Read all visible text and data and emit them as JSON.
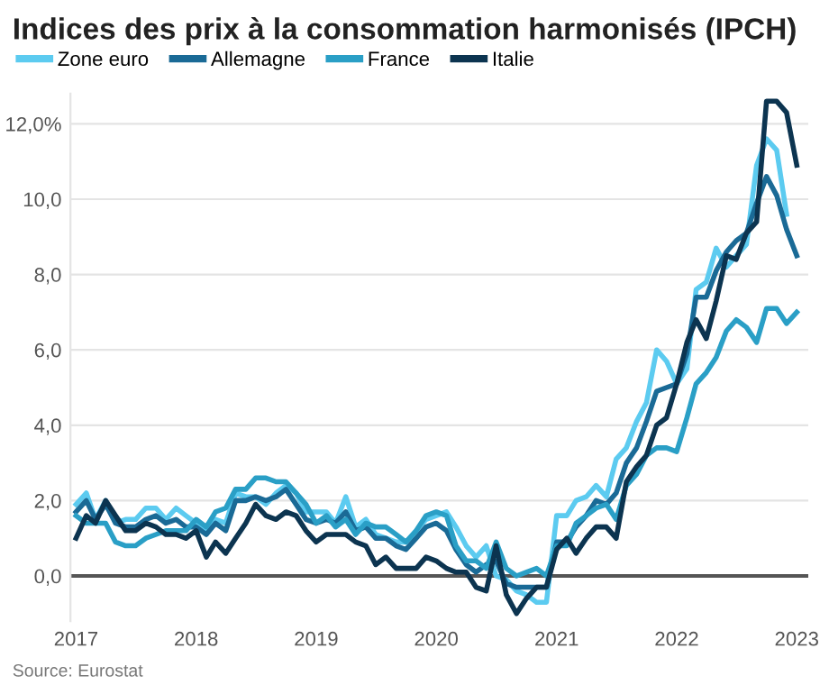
{
  "chart_data": {
    "type": "line",
    "title": "Indices des prix à la consommation harmonisés (IPCH)",
    "x": [
      "2017-01",
      "2017-02",
      "2017-03",
      "2017-04",
      "2017-05",
      "2017-06",
      "2017-07",
      "2017-08",
      "2017-09",
      "2017-10",
      "2017-11",
      "2017-12",
      "2018-01",
      "2018-02",
      "2018-03",
      "2018-04",
      "2018-05",
      "2018-06",
      "2018-07",
      "2018-08",
      "2018-09",
      "2018-10",
      "2018-11",
      "2018-12",
      "2019-01",
      "2019-02",
      "2019-03",
      "2019-04",
      "2019-05",
      "2019-06",
      "2019-07",
      "2019-08",
      "2019-09",
      "2019-10",
      "2019-11",
      "2019-12",
      "2020-01",
      "2020-02",
      "2020-03",
      "2020-04",
      "2020-05",
      "2020-06",
      "2020-07",
      "2020-08",
      "2020-09",
      "2020-10",
      "2020-11",
      "2020-12",
      "2021-01",
      "2021-02",
      "2021-03",
      "2021-04",
      "2021-05",
      "2021-06",
      "2021-07",
      "2021-08",
      "2021-09",
      "2021-10",
      "2021-11",
      "2021-12",
      "2022-01",
      "2022-02",
      "2022-03",
      "2022-04",
      "2022-05",
      "2022-06",
      "2022-07",
      "2022-08",
      "2022-09",
      "2022-10",
      "2022-11",
      "2022-12",
      "2023-01"
    ],
    "series": [
      {
        "name": "Zone euro",
        "color": "#5ccbf0",
        "values": [
          1.9,
          2.2,
          1.5,
          2.0,
          1.4,
          1.5,
          1.5,
          1.8,
          1.8,
          1.5,
          1.8,
          1.6,
          1.4,
          1.2,
          1.5,
          1.4,
          2.2,
          2.1,
          2.1,
          1.9,
          2.2,
          2.4,
          2.2,
          1.7,
          1.7,
          1.7,
          1.4,
          2.1,
          1.3,
          1.5,
          1.1,
          1.0,
          0.9,
          0.9,
          1.2,
          1.5,
          1.6,
          1.7,
          1.3,
          0.8,
          0.5,
          0.8,
          0.0,
          -0.1,
          -0.4,
          -0.5,
          -0.7,
          -0.7,
          1.6,
          1.6,
          2.0,
          2.1,
          2.4,
          2.1,
          3.1,
          3.4,
          4.1,
          4.6,
          6.0,
          5.7,
          5.1,
          5.5,
          7.6,
          7.8,
          8.7,
          8.2,
          8.5,
          8.8,
          10.9,
          11.6,
          11.3,
          9.6,
          null
        ]
      },
      {
        "name": "Allemagne",
        "color": "#1a6a96",
        "values": [
          1.7,
          2.0,
          1.5,
          1.9,
          1.4,
          1.3,
          1.3,
          1.5,
          1.6,
          1.4,
          1.5,
          1.3,
          1.3,
          1.1,
          1.4,
          1.2,
          2.0,
          2.0,
          2.1,
          2.0,
          2.1,
          2.3,
          1.9,
          1.5,
          1.4,
          1.5,
          1.4,
          1.7,
          1.2,
          1.3,
          1.0,
          1.0,
          0.8,
          0.7,
          1.0,
          1.3,
          1.4,
          1.2,
          0.7,
          0.3,
          0.1,
          0.3,
          0.4,
          -0.2,
          -0.3,
          -0.3,
          -0.3,
          -0.3,
          0.9,
          0.9,
          1.3,
          1.6,
          2.0,
          1.9,
          2.2,
          3.0,
          3.4,
          4.1,
          4.9,
          5.0,
          5.1,
          5.9,
          7.4,
          7.4,
          8.1,
          8.6,
          8.9,
          9.1,
          9.9,
          10.6,
          10.1,
          9.2,
          8.5
        ]
      },
      {
        "name": "France",
        "color": "#2a9fc6",
        "values": [
          1.6,
          1.4,
          1.4,
          1.4,
          0.9,
          0.8,
          0.8,
          1.0,
          1.1,
          1.2,
          1.2,
          1.2,
          1.5,
          1.3,
          1.7,
          1.8,
          2.3,
          2.3,
          2.6,
          2.6,
          2.5,
          2.5,
          2.2,
          1.9,
          1.4,
          1.6,
          1.3,
          1.5,
          1.1,
          1.4,
          1.3,
          1.3,
          1.1,
          0.9,
          1.2,
          1.6,
          1.7,
          1.6,
          0.8,
          0.4,
          0.4,
          0.2,
          0.9,
          0.2,
          0.0,
          0.1,
          0.2,
          0.0,
          0.8,
          0.8,
          1.4,
          1.6,
          1.8,
          1.9,
          1.5,
          2.4,
          2.7,
          3.2,
          3.4,
          3.4,
          3.3,
          4.2,
          5.1,
          5.4,
          5.8,
          6.5,
          6.8,
          6.6,
          6.2,
          7.1,
          7.1,
          6.7,
          7.0
        ]
      },
      {
        "name": "Italie",
        "color": "#0c3450",
        "values": [
          1.0,
          1.6,
          1.4,
          2.0,
          1.6,
          1.2,
          1.2,
          1.4,
          1.3,
          1.1,
          1.1,
          1.0,
          1.2,
          0.5,
          0.9,
          0.6,
          1.0,
          1.4,
          1.9,
          1.6,
          1.5,
          1.7,
          1.6,
          1.2,
          0.9,
          1.1,
          1.1,
          1.1,
          0.9,
          0.8,
          0.3,
          0.5,
          0.2,
          0.2,
          0.2,
          0.5,
          0.4,
          0.2,
          0.1,
          0.1,
          -0.3,
          -0.4,
          0.8,
          -0.5,
          -1.0,
          -0.6,
          -0.3,
          -0.3,
          0.7,
          1.0,
          0.6,
          1.0,
          1.3,
          1.3,
          1.0,
          2.5,
          2.9,
          3.2,
          4.0,
          4.2,
          5.1,
          6.2,
          6.8,
          6.3,
          7.3,
          8.5,
          8.4,
          9.1,
          9.4,
          12.6,
          12.6,
          12.3,
          10.9
        ]
      }
    ],
    "xlim": [
      "2016-12-15",
      "2023-02-05"
    ],
    "xticks": [
      {
        "value": "2017-01-01",
        "label": "2017"
      },
      {
        "value": "2018-01-01",
        "label": "2018"
      },
      {
        "value": "2019-01-01",
        "label": "2019"
      },
      {
        "value": "2020-01-01",
        "label": "2020"
      },
      {
        "value": "2021-01-01",
        "label": "2021"
      },
      {
        "value": "2022-01-01",
        "label": "2022"
      },
      {
        "value": "2023-01-01",
        "label": "2023"
      }
    ],
    "ylim": [
      -1.2,
      12.8
    ],
    "yticks": [
      {
        "value": 0,
        "label": "0,0"
      },
      {
        "value": 2,
        "label": "2,0"
      },
      {
        "value": 4,
        "label": "4,0"
      },
      {
        "value": 6,
        "label": "6,0"
      },
      {
        "value": 8,
        "label": "8,0"
      },
      {
        "value": 10,
        "label": "10,0"
      },
      {
        "value": 12,
        "label": "12,0%"
      }
    ],
    "grid": "y",
    "legend": "top left",
    "marker": "none",
    "line_style": "solid",
    "annotations": [
      "Source: Eurostat"
    ]
  }
}
